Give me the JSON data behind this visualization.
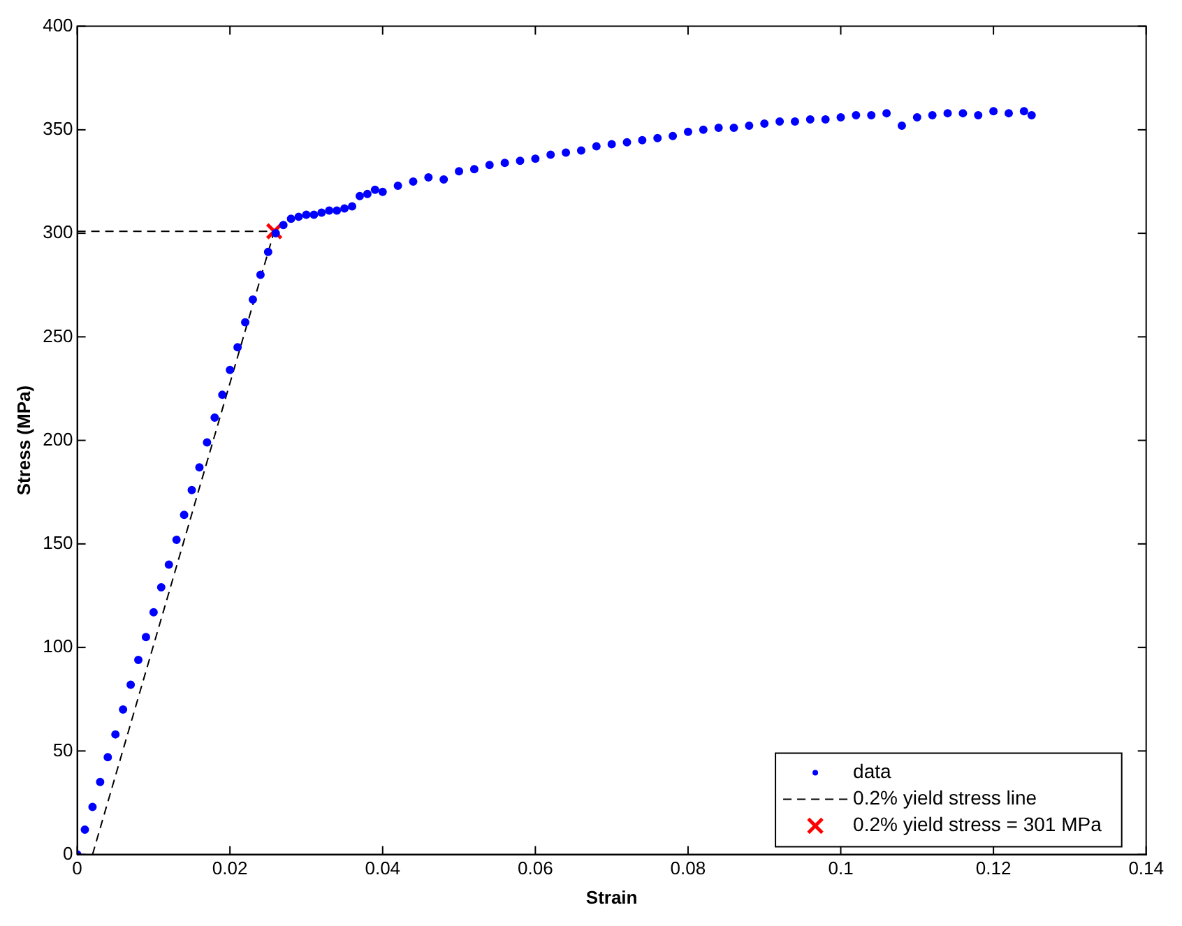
{
  "chart_data": {
    "type": "scatter",
    "xlabel": "Strain",
    "ylabel": "Stress (MPa)",
    "xlim": [
      0,
      0.14
    ],
    "xticks": [
      0,
      0.02,
      0.04,
      0.06,
      0.08,
      0.1,
      0.12,
      0.14
    ],
    "ylim": [
      0,
      400
    ],
    "yticks": [
      0,
      50,
      100,
      150,
      200,
      250,
      300,
      350,
      400
    ],
    "grid": false,
    "legend": "bottom right",
    "series": [
      {
        "name": "data",
        "type": "scatter",
        "marker": "circle",
        "color": "#0000ff",
        "x": [
          0,
          0.001,
          0.002,
          0.003,
          0.004,
          0.005,
          0.006,
          0.007,
          0.008,
          0.009,
          0.01,
          0.011,
          0.012,
          0.013,
          0.014,
          0.015,
          0.016,
          0.017,
          0.018,
          0.019,
          0.02,
          0.021,
          0.022,
          0.023,
          0.024,
          0.025,
          0.026,
          0.027,
          0.028,
          0.029,
          0.03,
          0.031,
          0.032,
          0.033,
          0.034,
          0.035,
          0.036,
          0.037,
          0.038,
          0.039,
          0.04,
          0.042,
          0.044,
          0.046,
          0.048,
          0.05,
          0.052,
          0.054,
          0.056,
          0.058,
          0.06,
          0.062,
          0.064,
          0.066,
          0.068,
          0.07,
          0.072,
          0.074,
          0.076,
          0.078,
          0.08,
          0.082,
          0.084,
          0.086,
          0.088,
          0.09,
          0.092,
          0.094,
          0.096,
          0.098,
          0.1,
          0.102,
          0.104,
          0.106,
          0.108,
          0.11,
          0.112,
          0.114,
          0.116,
          0.118,
          0.12,
          0.122,
          0.124,
          0.125
        ],
        "values": [
          0,
          12,
          23,
          35,
          47,
          58,
          70,
          82,
          94,
          105,
          117,
          129,
          140,
          152,
          164,
          176,
          187,
          199,
          211,
          222,
          234,
          245,
          257,
          268,
          280,
          291,
          300,
          304,
          307,
          308,
          309,
          309,
          310,
          311,
          311,
          312,
          313,
          318,
          319,
          321,
          320,
          323,
          325,
          327,
          326,
          330,
          331,
          333,
          334,
          335,
          336,
          338,
          339,
          340,
          342,
          343,
          344,
          345,
          346,
          347,
          349,
          350,
          351,
          351,
          352,
          353,
          354,
          354,
          355,
          355,
          356,
          357,
          357,
          358,
          352,
          356,
          357,
          358,
          358,
          357,
          359,
          358,
          359,
          357
        ]
      },
      {
        "name": "0.2% yield stress line",
        "type": "line",
        "marker": "none",
        "line_style": "dashed",
        "color": "#000000",
        "x": [
          0,
          0.0258,
          0.002
        ],
        "values": [
          301,
          301,
          0
        ]
      },
      {
        "name": "0.2% yield stress = 301 MPa",
        "type": "scatter",
        "marker": "cross",
        "color": "#ff0000",
        "x": [
          0.0258
        ],
        "values": [
          301
        ]
      }
    ]
  }
}
